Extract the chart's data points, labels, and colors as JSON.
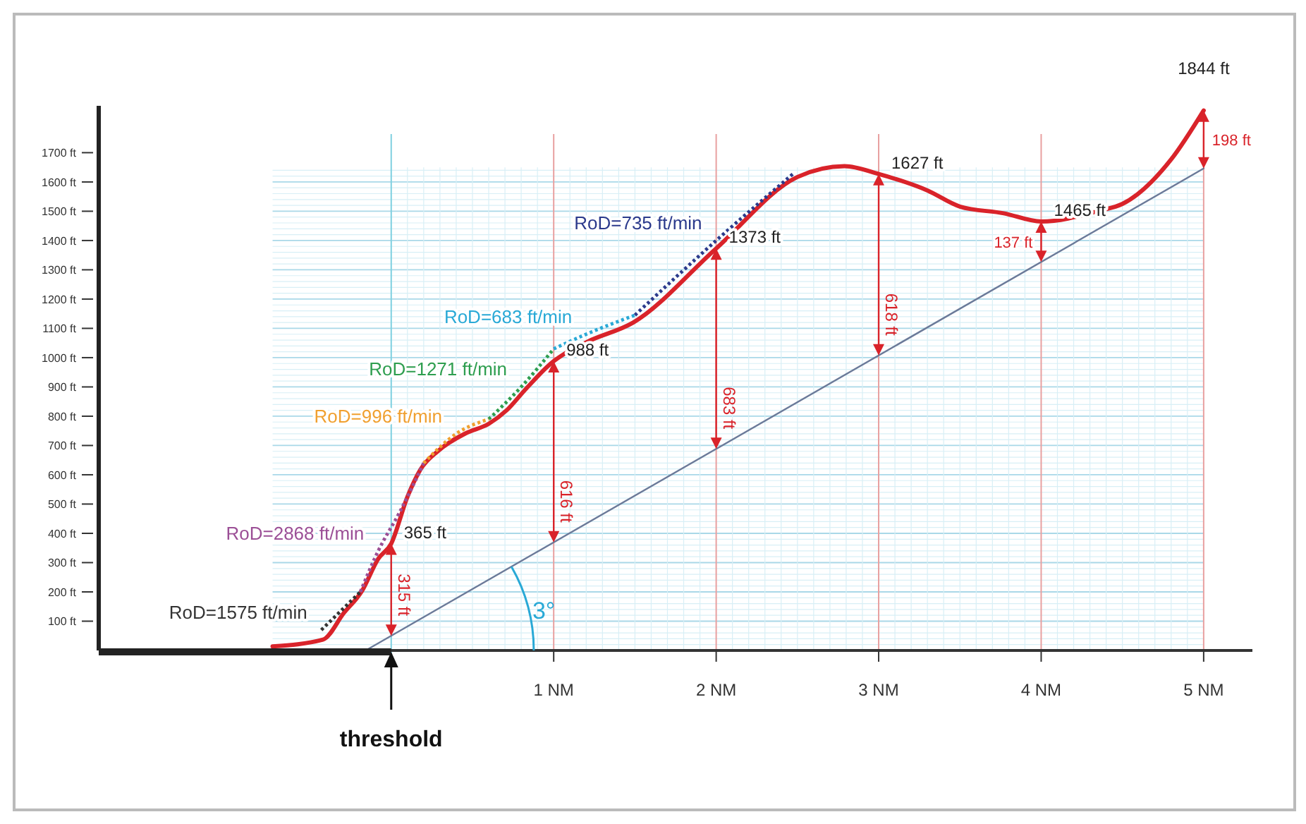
{
  "chart_data": {
    "type": "line",
    "xlim": [
      -1.8,
      5.3
    ],
    "ylim": [
      0,
      1860
    ],
    "xticks": [
      {
        "value": 1,
        "label": "1 NM"
      },
      {
        "value": 2,
        "label": "2 NM"
      },
      {
        "value": 3,
        "label": "3 NM"
      },
      {
        "value": 4,
        "label": "4 NM"
      },
      {
        "value": 5,
        "label": "5 NM"
      }
    ],
    "yticks": [
      {
        "value": 100,
        "label": "100 ft"
      },
      {
        "value": 200,
        "label": "200 ft"
      },
      {
        "value": 300,
        "label": "300 ft"
      },
      {
        "value": 400,
        "label": "400 ft"
      },
      {
        "value": 500,
        "label": "500 ft"
      },
      {
        "value": 600,
        "label": "600 ft"
      },
      {
        "value": 700,
        "label": "700 ft"
      },
      {
        "value": 800,
        "label": "800 ft"
      },
      {
        "value": 900,
        "label": "900 ft"
      },
      {
        "value": 1000,
        "label": "1000 ft"
      },
      {
        "value": 1100,
        "label": "1100 ft"
      },
      {
        "value": 1200,
        "label": "1200 ft"
      },
      {
        "value": 1300,
        "label": "1300 ft"
      },
      {
        "value": 1400,
        "label": "1400 ft"
      },
      {
        "value": 1500,
        "label": "1500 ft"
      },
      {
        "value": 1600,
        "label": "1600 ft"
      },
      {
        "value": 1700,
        "label": "1700 ft"
      }
    ],
    "grid": true,
    "series": [
      {
        "color": "#6b7a99",
        "line_style": "solid",
        "x": [
          -0.157,
          5
        ],
        "values": [
          0,
          1646
        ]
      },
      {
        "color": "#d9232a",
        "line_style": "solid",
        "x": [
          -0.73,
          -0.42,
          -0.29,
          -0.18,
          -0.08,
          0,
          0.1,
          0.18,
          0.29,
          0.46,
          0.6,
          0.71,
          0.83,
          1,
          1.08,
          1.21,
          1.49,
          2,
          2.5,
          2.79,
          3,
          3.3,
          3.5,
          3.77,
          4,
          4.36,
          4.5,
          4.8,
          5
        ],
        "values": [
          14,
          37,
          129,
          203,
          313,
          365,
          525,
          618,
          682,
          742,
          774,
          820,
          894,
          988,
          1018,
          1055,
          1120,
          1373,
          1617,
          1654,
          1627,
          1571,
          1516,
          1493,
          1465,
          1502,
          1525,
          1677,
          1844
        ]
      },
      {
        "name": "RoD=1575 ft/min",
        "color": "#333333",
        "line_style": "dotted",
        "x": [
          -0.43,
          -0.19
        ],
        "values": [
          70,
          200
        ]
      },
      {
        "name": "RoD=2868 ft/min",
        "color": "#9b4f96",
        "line_style": "dotted",
        "x": [
          -0.19,
          -0.08,
          0.05,
          0.2
        ],
        "values": [
          200,
          340,
          470,
          640
        ]
      },
      {
        "name": "RoD=996 ft/min",
        "color": "#f0a030",
        "line_style": "dotted",
        "x": [
          0.2,
          0.4,
          0.6
        ],
        "values": [
          640,
          740,
          790
        ]
      },
      {
        "name": "RoD=1271 ft/min",
        "color": "#2e9e4f",
        "line_style": "dotted",
        "x": [
          0.6,
          0.8,
          1.0
        ],
        "values": [
          790,
          900,
          1030
        ]
      },
      {
        "name": "RoD=683 ft/min",
        "color": "#29a9d6",
        "line_style": "dotted",
        "x": [
          1.0,
          1.2,
          1.5
        ],
        "values": [
          1030,
          1080,
          1145
        ]
      },
      {
        "name": "RoD=735 ft/min",
        "color": "#2b3a8c",
        "line_style": "dotted",
        "x": [
          1.5,
          2.0,
          2.48
        ],
        "values": [
          1145,
          1400,
          1631
        ]
      }
    ],
    "ref_lines": [
      {
        "axis": "x",
        "value": 0,
        "color": "#7fd0e0"
      }
    ],
    "annotations": [
      {
        "text": "365 ft",
        "x": 0,
        "y": 365
      },
      {
        "text": "988 ft",
        "x": 1,
        "y": 988
      },
      {
        "text": "1373 ft",
        "x": 2,
        "y": 1373
      },
      {
        "text": "1627 ft",
        "x": 3,
        "y": 1627
      },
      {
        "text": "1465 ft",
        "x": 4,
        "y": 1465
      },
      {
        "text": "1844 ft",
        "x": 5,
        "y": 1844
      },
      {
        "text": "315 ft",
        "x": 0,
        "y": 50
      },
      {
        "text": "616 ft",
        "x": 1,
        "y": 369
      },
      {
        "text": "683 ft",
        "x": 2,
        "y": 689
      },
      {
        "text": "618 ft",
        "x": 3,
        "y": 1008
      },
      {
        "text": "137 ft",
        "x": 4,
        "y": 1327
      },
      {
        "text": "198 ft",
        "x": 5,
        "y": 1646
      },
      {
        "text": "3°",
        "x": 0.74,
        "y": 286
      },
      {
        "text": "threshold",
        "x": 0,
        "y": 0
      }
    ]
  }
}
